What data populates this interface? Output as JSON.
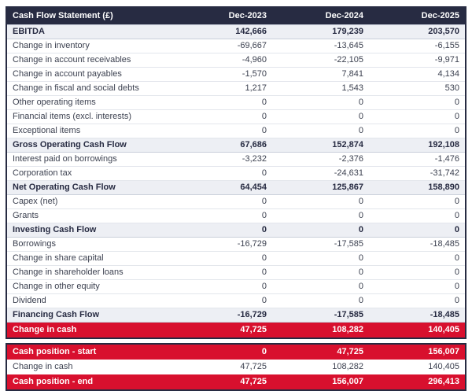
{
  "chart_data": {
    "type": "table",
    "title": "Cash Flow Statement (£)",
    "columns": [
      "Dec-2023",
      "Dec-2024",
      "Dec-2025"
    ],
    "rows": [
      {
        "label": "EBITDA",
        "values": [
          "142,666",
          "179,239",
          "203,570"
        ],
        "style": "subtotal"
      },
      {
        "label": "Change in inventory",
        "values": [
          "-69,667",
          "-13,645",
          "-6,155"
        ],
        "style": "normal"
      },
      {
        "label": "Change in account receivables",
        "values": [
          "-4,960",
          "-22,105",
          "-9,971"
        ],
        "style": "normal"
      },
      {
        "label": "Change in account payables",
        "values": [
          "-1,570",
          "7,841",
          "4,134"
        ],
        "style": "normal"
      },
      {
        "label": "Change in fiscal and social debts",
        "values": [
          "1,217",
          "1,543",
          "530"
        ],
        "style": "normal"
      },
      {
        "label": "Other operating items",
        "values": [
          "0",
          "0",
          "0"
        ],
        "style": "normal"
      },
      {
        "label": "Financial items (excl. interests)",
        "values": [
          "0",
          "0",
          "0"
        ],
        "style": "normal"
      },
      {
        "label": "Exceptional items",
        "values": [
          "0",
          "0",
          "0"
        ],
        "style": "normal"
      },
      {
        "label": "Gross Operating Cash Flow",
        "values": [
          "67,686",
          "152,874",
          "192,108"
        ],
        "style": "subtotal"
      },
      {
        "label": "Interest paid on borrowings",
        "values": [
          "-3,232",
          "-2,376",
          "-1,476"
        ],
        "style": "normal"
      },
      {
        "label": "Corporation tax",
        "values": [
          "0",
          "-24,631",
          "-31,742"
        ],
        "style": "normal"
      },
      {
        "label": "Net Operating Cash Flow",
        "values": [
          "64,454",
          "125,867",
          "158,890"
        ],
        "style": "subtotal"
      },
      {
        "label": "Capex (net)",
        "values": [
          "0",
          "0",
          "0"
        ],
        "style": "normal"
      },
      {
        "label": "Grants",
        "values": [
          "0",
          "0",
          "0"
        ],
        "style": "normal"
      },
      {
        "label": "Investing Cash Flow",
        "values": [
          "0",
          "0",
          "0"
        ],
        "style": "subtotal"
      },
      {
        "label": "Borrowings",
        "values": [
          "-16,729",
          "-17,585",
          "-18,485"
        ],
        "style": "normal"
      },
      {
        "label": "Change in share capital",
        "values": [
          "0",
          "0",
          "0"
        ],
        "style": "normal"
      },
      {
        "label": "Change in shareholder loans",
        "values": [
          "0",
          "0",
          "0"
        ],
        "style": "normal"
      },
      {
        "label": "Change in other equity",
        "values": [
          "0",
          "0",
          "0"
        ],
        "style": "normal"
      },
      {
        "label": "Dividend",
        "values": [
          "0",
          "0",
          "0"
        ],
        "style": "normal"
      },
      {
        "label": "Financing Cash Flow",
        "values": [
          "-16,729",
          "-17,585",
          "-18,485"
        ],
        "style": "subtotal"
      },
      {
        "label": "Change in cash",
        "values": [
          "47,725",
          "108,282",
          "140,405"
        ],
        "style": "highlight"
      }
    ],
    "summary_rows": [
      {
        "label": "Cash position - start",
        "values": [
          "0",
          "47,725",
          "156,007"
        ],
        "style": "highlight"
      },
      {
        "label": "Change in cash",
        "values": [
          "47,725",
          "108,282",
          "140,405"
        ],
        "style": "normal"
      },
      {
        "label": "Cash position - end",
        "values": [
          "47,725",
          "156,007",
          "296,413"
        ],
        "style": "highlight"
      }
    ],
    "colors": {
      "header_bg": "#272b42",
      "header_text": "#ffffff",
      "highlight_bg": "#d8102e",
      "highlight_text": "#ffffff",
      "subtotal_bg": "#edeff4",
      "body_text": "#3c4150"
    },
    "layout": {
      "numeric_alignment": "right",
      "grid": "horizontal-light",
      "legend": "none"
    }
  }
}
